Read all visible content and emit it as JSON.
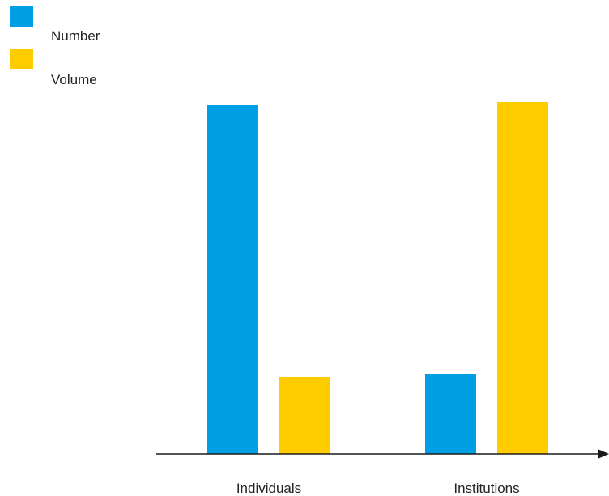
{
  "chart_data": {
    "type": "bar",
    "categories": [
      "Individuals",
      "Institutions"
    ],
    "series": [
      {
        "name": "Number",
        "color": "#009FE3",
        "values": [
          100,
          23
        ]
      },
      {
        "name": "Volume",
        "color": "#FFCC00",
        "values": [
          22,
          101
        ]
      }
    ],
    "ylim": [
      0,
      104
    ],
    "legend_position": "top-left",
    "x_axis_arrow": true,
    "y_axis_visible": false,
    "grid": false
  }
}
